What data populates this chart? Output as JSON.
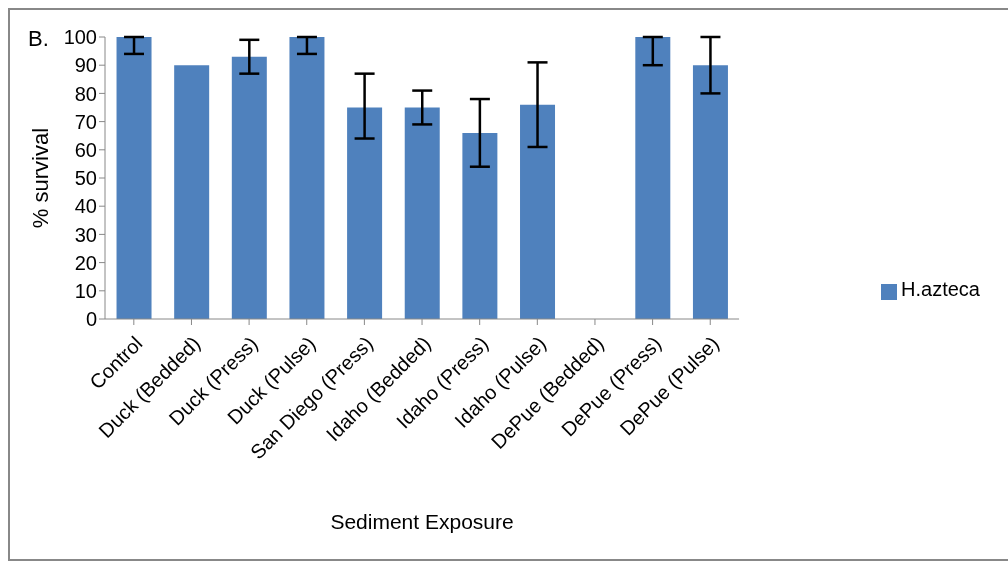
{
  "chart_data": {
    "type": "bar",
    "xlabel": "Sediment Exposure",
    "ylabel": "% survival",
    "annotations": [
      "B."
    ],
    "categories": [
      "Control",
      "Duck (Bedded)",
      "Duck (Press)",
      "Duck (Pulse)",
      "San Diego (Press)",
      "Idaho (Bedded)",
      "Idaho (Press)",
      "Idaho (Pulse)",
      "DePue (Bedded)",
      "DePue (Press)",
      "DePue (Pulse)"
    ],
    "series": [
      {
        "name": "H.azteca",
        "color": "#4f81bd",
        "values": [
          100,
          90,
          93,
          100,
          75,
          75,
          66,
          76,
          0,
          100,
          90
        ],
        "errors": [
          [
            94,
            100
          ],
          null,
          [
            87,
            99
          ],
          [
            94,
            100
          ],
          [
            64,
            87
          ],
          [
            69,
            81
          ],
          [
            54,
            78
          ],
          [
            61,
            91
          ],
          null,
          [
            90,
            100
          ],
          [
            80,
            100
          ]
        ]
      }
    ],
    "ylim": [
      0,
      100
    ],
    "yticks": [
      0,
      10,
      20,
      30,
      40,
      50,
      60,
      70,
      80,
      90,
      100
    ],
    "grid": false,
    "legend": "right"
  }
}
